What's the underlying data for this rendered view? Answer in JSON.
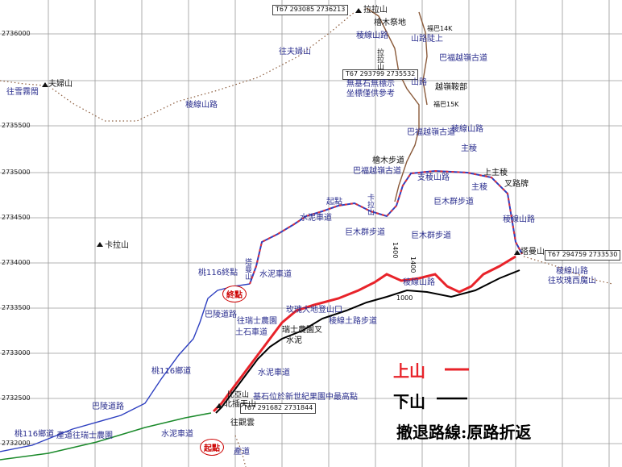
{
  "map": {
    "grid_coords_y": [
      "2736000",
      "2735500",
      "2735000",
      "2734500",
      "2734000",
      "2733500",
      "2733000",
      "2732500",
      "2732000"
    ],
    "peaks": [
      {
        "name": "拉拉山"
      },
      {
        "name": "塔曼山"
      },
      {
        "name": "北插天山"
      },
      {
        "name": "卡拉山"
      }
    ],
    "coord_boxes": [
      "T67 293085 2736213",
      "T67 293799 2735532",
      "T67 294759 2733530",
      "T67 291682 2731844"
    ],
    "labels": {
      "l01": "檜木祭地",
      "l02": "拉拉山",
      "l03": "稜線山路",
      "l04": "往夫婦山",
      "l05": "山路陡上",
      "l06": "福巴14K",
      "l07": "巴福越嶺古道",
      "l08": "夫婦山",
      "l09": "往雪霧鬧",
      "l10": "稜線山路",
      "l11": "無基石無標示",
      "l12": "坐標僅供參考",
      "l13": "山路",
      "l14": "越嶺鞍部",
      "l15": "福巴15K",
      "l16": "巴福越嶺古道",
      "l17": "稜線山路",
      "l18": "主稜",
      "l19": "巴福越嶺古道",
      "l20": "檜木步道",
      "l21": "支稜山路",
      "l22": "上主稜",
      "l23": "主稜",
      "l24": "叉路牌",
      "l25": "起點",
      "l26": "巨木群步道",
      "l27": "巨木群步道",
      "l28": "巨木群步道",
      "l29": "稜線山路",
      "l30": "水泥車道",
      "l31": "卡拉山",
      "l32": "塔曼山",
      "l33": "稜線山路",
      "l34": "往玫瑰西魔山",
      "l35": "桃116終點",
      "l36": "水泥車道",
      "l37": "稜線山路",
      "l38": "巴陵道路",
      "l39": "土石車道",
      "l40": "往瑞士農園",
      "l41": "瑞士農園叉",
      "l42": "水泥",
      "l43": "玫瑰大地登山口",
      "l44": "稜線土路步道",
      "l45": "桃116鄉道",
      "l46": "水泥車道",
      "l47": "巴陵道路",
      "l48": "比亞山",
      "l49": "基石位於新世紀果園中最高點",
      "l50": "桃116鄉道",
      "l51": "產道往瑞士農園",
      "l52": "水泥車道",
      "l53": "產道",
      "l54": "往觀雲",
      "l55": "1000",
      "l56": "1400",
      "l57": "1400"
    },
    "start_marker": "起點",
    "end_marker": "終點"
  },
  "legend": {
    "up_label": "上山",
    "down_label": "下山",
    "retreat": "撤退路線:原路折返"
  },
  "colors": {
    "up": "#e8232a",
    "down": "#000000",
    "trail_blue": "#2d3fc0",
    "trail_red": "#e0303a",
    "road_green": "#1b8a2b",
    "road_blue": "#2d3fc0",
    "trail_brown": "#8a5a3a"
  }
}
